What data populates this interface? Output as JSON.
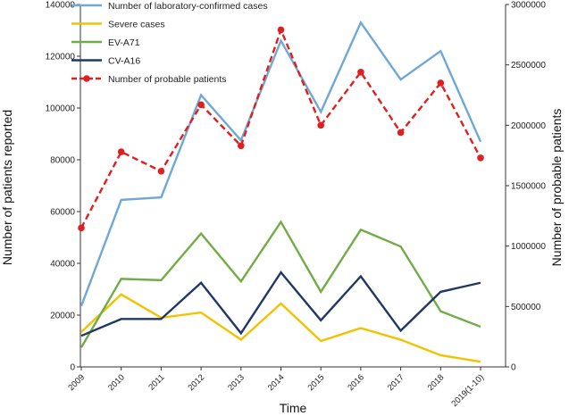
{
  "chart_data": {
    "type": "line",
    "categories": [
      "2009",
      "2010",
      "2011",
      "2012",
      "2013",
      "2014",
      "2015",
      "2016",
      "2017",
      "2018",
      "2019(1-10)"
    ],
    "xlabel": "Time",
    "ylabel": "Number of patients reported",
    "y2label": "Number of probable patients",
    "ylim": [
      0,
      140000
    ],
    "y2lim": [
      0,
      3000000
    ],
    "yticks": [
      "0",
      "20000",
      "40000",
      "60000",
      "80000",
      "100000",
      "120000",
      "140000"
    ],
    "y2ticks": [
      "0",
      "500000",
      "1000000",
      "1500000",
      "2000000",
      "2500000",
      "3000000"
    ],
    "legend_position": "top-left",
    "series": [
      {
        "name": "Number of laboratory-confirmed cases",
        "axis": "left",
        "color": "#6fa8d6",
        "dashed": false,
        "markers": false,
        "values": [
          23500,
          64500,
          65500,
          105000,
          87500,
          126000,
          98500,
          133000,
          111000,
          122000,
          87000
        ]
      },
      {
        "name": "Severe cases",
        "axis": "left",
        "color": "#f2c200",
        "dashed": false,
        "markers": false,
        "values": [
          13500,
          28000,
          19000,
          21000,
          10500,
          24500,
          10000,
          15000,
          10500,
          4500,
          2000
        ]
      },
      {
        "name": "EV-A71",
        "axis": "left",
        "color": "#70ad47",
        "dashed": false,
        "markers": false,
        "values": [
          7500,
          34000,
          33500,
          51500,
          33000,
          56000,
          29000,
          53000,
          46500,
          21500,
          15500
        ]
      },
      {
        "name": "CV-A16",
        "axis": "left",
        "color": "#203864",
        "dashed": false,
        "markers": false,
        "values": [
          12000,
          18500,
          18500,
          32500,
          13000,
          36500,
          18000,
          35000,
          14000,
          29000,
          32500
        ]
      },
      {
        "name": "Number of probable patients",
        "axis": "right",
        "color": "#e02020",
        "dashed": true,
        "markers": true,
        "values": [
          1150000,
          1780000,
          1620000,
          2170000,
          1830000,
          2790000,
          2000000,
          2440000,
          1940000,
          2350000,
          1730000
        ]
      }
    ]
  }
}
